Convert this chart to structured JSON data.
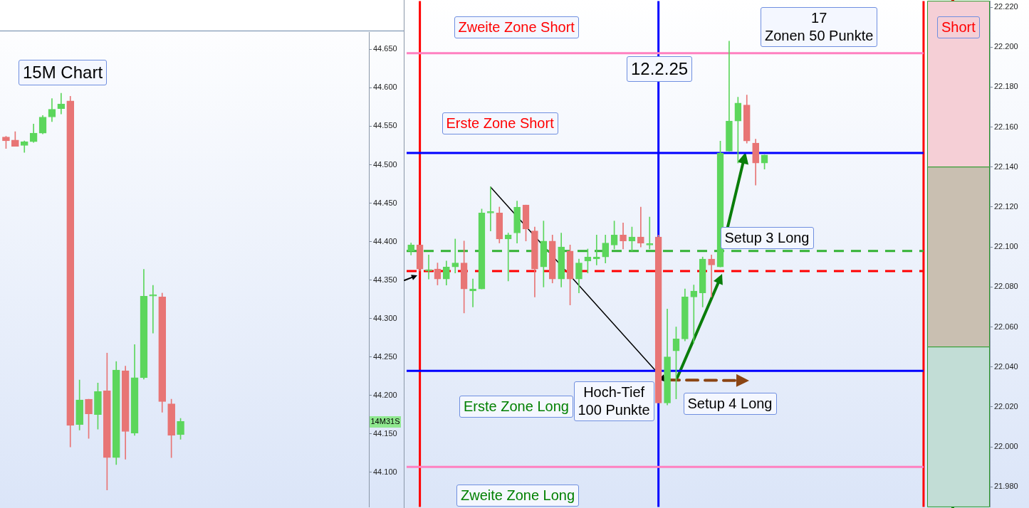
{
  "chart_data": [
    {
      "type": "candlestick",
      "tick_labels": "y",
      "categories": [
        null,
        null,
        null,
        null,
        null,
        null,
        null,
        null,
        null,
        null,
        null,
        null,
        null,
        null,
        null,
        null,
        null,
        null,
        null,
        null,
        null,
        null,
        null,
        null,
        null,
        null,
        null,
        null,
        null,
        null,
        null,
        null,
        null,
        null,
        null,
        null,
        null,
        null,
        null,
        null
      ],
      "ohlc": [
        [
          44536,
          44537,
          44521,
          44531
        ],
        [
          44532,
          44543,
          44524,
          44524
        ],
        [
          44525,
          44531,
          44516,
          44530
        ],
        [
          44530,
          44553,
          44529,
          44541
        ],
        [
          44541,
          44564,
          44540,
          44562
        ],
        [
          44562,
          44586,
          44556,
          44572
        ],
        [
          44573,
          44593,
          44566,
          44579
        ],
        [
          44583,
          44589,
          44133,
          44161
        ],
        [
          44162,
          44220,
          44155,
          44194
        ],
        [
          44195,
          44195,
          44144,
          44176
        ],
        [
          44175,
          44216,
          44156,
          44205
        ],
        [
          44206,
          44255,
          44077,
          44119
        ],
        [
          44119,
          44244,
          44110,
          44233
        ],
        [
          44232,
          44238,
          44117,
          44153
        ],
        [
          44151,
          44266,
          44148,
          44223
        ],
        [
          44223,
          44364,
          44221,
          44329
        ],
        [
          44329,
          44343,
          44281,
          44329
        ],
        [
          44328,
          44333,
          44178,
          44192
        ],
        [
          44189,
          44195,
          44119,
          44148
        ],
        [
          44149,
          44170,
          44143,
          44166
        ],
        null,
        null,
        null,
        null,
        null,
        null,
        null,
        null,
        null,
        null,
        null,
        null,
        null,
        null,
        null,
        null,
        null,
        null,
        null,
        null
      ],
      "colors": [
        "#e87575",
        "#e87575",
        "#5cd65c",
        "#5cd65c",
        "#5cd65c",
        "#5cd65c",
        "#5cd65c",
        "#e87575",
        "#5cd65c",
        "#e87575",
        "#5cd65c",
        "#e87575",
        "#5cd65c",
        "#e87575",
        "#5cd65c",
        "#5cd65c",
        "#5cd65c",
        "#e87575",
        "#e87575",
        "#5cd65c",
        null,
        null,
        null,
        null,
        null,
        null,
        null,
        null,
        null,
        null,
        null,
        null,
        null,
        null,
        null,
        null,
        null,
        null,
        null,
        null
      ],
      "ylim": [
        44055,
        44672
      ],
      "yticks": [
        {
          "value": 44100,
          "label": "44.100"
        },
        {
          "value": 44150,
          "label": "44.150"
        },
        {
          "value": 44200,
          "label": "44.200"
        },
        {
          "value": 44250,
          "label": "44.250"
        },
        {
          "value": 44300,
          "label": "44.300"
        },
        {
          "value": 44350,
          "label": "44.350"
        },
        {
          "value": 44400,
          "label": "44.400"
        },
        {
          "value": 44450,
          "label": "44.450"
        },
        {
          "value": 44500,
          "label": "44.500"
        },
        {
          "value": 44550,
          "label": "44.550"
        },
        {
          "value": 44600,
          "label": "44.600"
        },
        {
          "value": 44650,
          "label": "44.650"
        }
      ],
      "annotations": [
        "15M Chart",
        "14M31S"
      ]
    },
    {
      "type": "candlestick",
      "tick_labels": "y",
      "categories": [
        null,
        null,
        null,
        null,
        null,
        null,
        null,
        null,
        null,
        null,
        null,
        null,
        null,
        null,
        null,
        null,
        null,
        null,
        null,
        null,
        null,
        null,
        null,
        null,
        null,
        null,
        null,
        null,
        null,
        null,
        null,
        null,
        null,
        null,
        null,
        null,
        null,
        null,
        null,
        null,
        null,
        null,
        null,
        null,
        null,
        null,
        null,
        null,
        null,
        null,
        null,
        null,
        null,
        null,
        null,
        null,
        null,
        null,
        null,
        null,
        null,
        null,
        null,
        null,
        null,
        null
      ],
      "ohlc": [
        [
          22098,
          22102,
          22096,
          22101
        ],
        [
          22101,
          22101,
          22088,
          22089
        ],
        [
          22088,
          22096,
          22084,
          22088
        ],
        [
          22089,
          22092,
          22081,
          22084
        ],
        [
          22084,
          22093,
          22081,
          22090
        ],
        [
          22090,
          22104,
          22087,
          22092
        ],
        [
          22092,
          22103,
          22067,
          22079
        ],
        [
          22078,
          22084,
          22070,
          22079
        ],
        [
          22079,
          22119,
          22079,
          22117
        ],
        [
          22117,
          22130,
          22108,
          22117
        ],
        [
          22117,
          22120,
          22102,
          22104
        ],
        [
          22104,
          22107,
          22083,
          22106
        ],
        [
          22107,
          22123,
          22102,
          22120
        ],
        [
          22121,
          22121,
          22103,
          22109
        ],
        [
          22108,
          22110,
          22075,
          22089
        ],
        [
          22090,
          22113,
          22080,
          22103
        ],
        [
          22103,
          22106,
          22082,
          22084
        ],
        [
          22084,
          22107,
          22080,
          22100
        ],
        [
          22098,
          22101,
          22071,
          22084
        ],
        [
          22084,
          22094,
          22077,
          22092
        ],
        [
          22093,
          22099,
          22087,
          22095
        ],
        [
          22094,
          22106,
          22091,
          22095
        ],
        [
          22095,
          22106,
          22092,
          22102
        ],
        [
          22101,
          22113,
          22099,
          22106
        ],
        [
          22106,
          22112,
          22099,
          22103
        ],
        [
          22103,
          22110,
          22098,
          22105
        ],
        [
          22105,
          22120,
          22100,
          22102
        ],
        [
          22101,
          22115,
          22099,
          22101
        ],
        [
          22105,
          22106,
          22022,
          22022
        ],
        [
          22022,
          22069,
          22021,
          22045
        ],
        [
          22048,
          22060,
          22024,
          22054
        ],
        [
          22054,
          22079,
          22053,
          22075
        ],
        [
          22075,
          22081,
          22052,
          22078
        ],
        [
          22077,
          22095,
          22070,
          22094
        ],
        [
          22094,
          22096,
          22075,
          22091
        ],
        [
          22090,
          22153,
          22090,
          22147
        ],
        [
          22148,
          22203,
          22148,
          22163
        ],
        [
          22163,
          22175,
          22142,
          22172
        ],
        [
          22171,
          22176,
          22152,
          22153
        ],
        [
          22152,
          22154,
          22131,
          22142
        ],
        [
          22142,
          22146,
          22139,
          22146
        ],
        null,
        null,
        null,
        null,
        null,
        null,
        null,
        null,
        null,
        null,
        null,
        null,
        null,
        null,
        null,
        null,
        null,
        null,
        null,
        null,
        null,
        null,
        null,
        null,
        null
      ],
      "colors": [
        "#5cd65c",
        "#e87575",
        "#5cd65c",
        "#e87575",
        "#5cd65c",
        "#5cd65c",
        "#e87575",
        "#5cd65c",
        "#5cd65c",
        "#5cd65c",
        "#e87575",
        "#5cd65c",
        "#5cd65c",
        "#e87575",
        "#e87575",
        "#5cd65c",
        "#e87575",
        "#5cd65c",
        "#e87575",
        "#5cd65c",
        "#5cd65c",
        "#5cd65c",
        "#5cd65c",
        "#5cd65c",
        "#e87575",
        "#5cd65c",
        "#e87575",
        "#5cd65c",
        "#e87575",
        "#5cd65c",
        "#5cd65c",
        "#5cd65c",
        "#5cd65c",
        "#5cd65c",
        "#e87575",
        "#5cd65c",
        "#5cd65c",
        "#5cd65c",
        "#e87575",
        "#e87575",
        "#5cd65c",
        null,
        null,
        null,
        null,
        null,
        null,
        null,
        null,
        null,
        null,
        null,
        null,
        null,
        null,
        null,
        null,
        null,
        null,
        null,
        null,
        null,
        null,
        null,
        null,
        null
      ],
      "ylim": [
        21970,
        22223
      ],
      "yticks": [
        {
          "value": 21980,
          "label": "21.980"
        },
        {
          "value": 22000,
          "label": "22.000"
        },
        {
          "value": 22020,
          "label": "22.020"
        },
        {
          "value": 22040,
          "label": "22.040"
        },
        {
          "value": 22060,
          "label": "22.060"
        },
        {
          "value": 22080,
          "label": "22.080"
        },
        {
          "value": 22100,
          "label": "22.100"
        },
        {
          "value": 22120,
          "label": "22.120"
        },
        {
          "value": 22140,
          "label": "22.140"
        },
        {
          "value": 22160,
          "label": "22.160"
        },
        {
          "value": 22180,
          "label": "22.180"
        },
        {
          "value": 22200,
          "label": "22.200"
        },
        {
          "value": 22220,
          "label": "22.220"
        }
      ],
      "ref_lines": [
        {
          "axis": "y",
          "value": 22197,
          "color": "#ff80c0"
        },
        {
          "axis": "y",
          "value": 22147,
          "color": "#0000ff"
        },
        {
          "axis": "y",
          "value": 22098,
          "color": "#33b233",
          "line_style": "dashed"
        },
        {
          "axis": "y",
          "value": 22088,
          "color": "#ff0000",
          "line_style": "dashed"
        },
        {
          "axis": "y",
          "value": 22038,
          "color": "#0000ff"
        },
        {
          "axis": "y",
          "value": 21990,
          "color": "#ff80c0"
        }
      ],
      "bands": [
        {
          "axis": "y",
          "from": 22140,
          "to": 22223,
          "label": "Short",
          "color": "#f5cfd6"
        },
        {
          "axis": "y",
          "from": 22050,
          "to": 22140,
          "color": "#c9bfb1"
        },
        {
          "axis": "y",
          "from": 21970,
          "to": 22050,
          "color": "#c2ddd6"
        }
      ],
      "annotations": [
        "Zweite Zone Short",
        "17\nZonen 50 Punkte",
        "12.2.25",
        "Erste Zone Short",
        "Setup 3 Long",
        "Erste Zone Long",
        "Hoch-Tief\n100 Punkte",
        "Setup 4 Long",
        "Zweite  Zone Long"
      ]
    }
  ]
}
